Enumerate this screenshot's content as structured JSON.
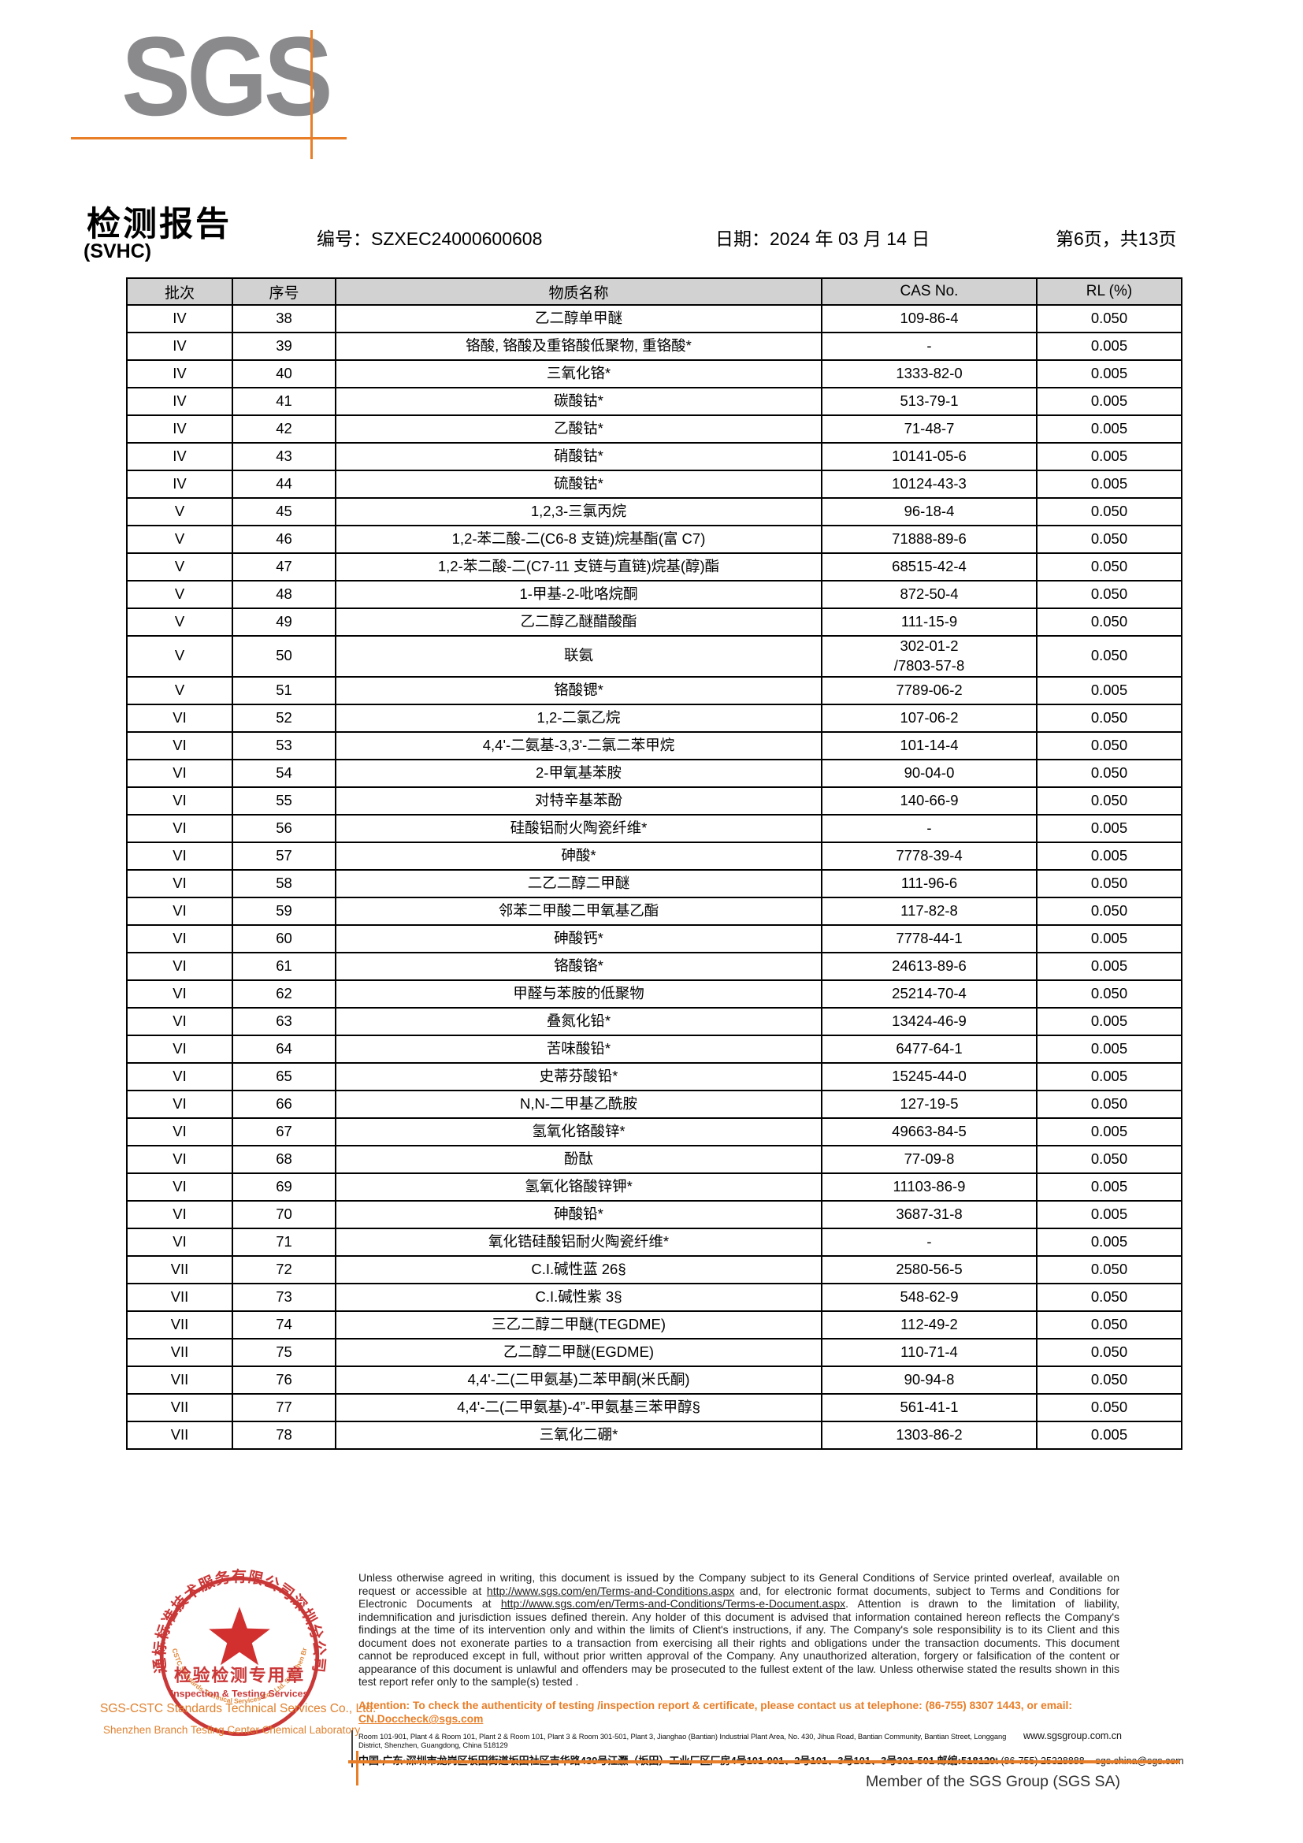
{
  "logo": {
    "text": "SGS"
  },
  "header": {
    "title": "检测报告",
    "subtitle": "(SVHC)",
    "report_no": "编号：SZXEC24000600608",
    "date": "日期：2024 年 03 月 14 日",
    "page_info": "第6页，共13页"
  },
  "table": {
    "headers": [
      "批次",
      "序号",
      "物质名称",
      "CAS No.",
      "RL (%)"
    ],
    "rows": [
      [
        "IV",
        "38",
        "乙二醇单甲醚",
        "109-86-4",
        "0.050"
      ],
      [
        "IV",
        "39",
        "铬酸, 铬酸及重铬酸低聚物, 重铬酸*",
        "-",
        "0.005"
      ],
      [
        "IV",
        "40",
        "三氧化铬*",
        "1333-82-0",
        "0.005"
      ],
      [
        "IV",
        "41",
        "碳酸钴*",
        "513-79-1",
        "0.005"
      ],
      [
        "IV",
        "42",
        "乙酸钴*",
        "71-48-7",
        "0.005"
      ],
      [
        "IV",
        "43",
        "硝酸钴*",
        "10141-05-6",
        "0.005"
      ],
      [
        "IV",
        "44",
        "硫酸钴*",
        "10124-43-3",
        "0.005"
      ],
      [
        "V",
        "45",
        "1,2,3-三氯丙烷",
        "96-18-4",
        "0.050"
      ],
      [
        "V",
        "46",
        "1,2-苯二酸-二(C6-8 支链)烷基酯(富 C7)",
        "71888-89-6",
        "0.050"
      ],
      [
        "V",
        "47",
        "1,2-苯二酸-二(C7-11 支链与直链)烷基(醇)酯",
        "68515-42-4",
        "0.050"
      ],
      [
        "V",
        "48",
        "1-甲基-2-吡咯烷酮",
        "872-50-4",
        "0.050"
      ],
      [
        "V",
        "49",
        "乙二醇乙醚醋酸酯",
        "111-15-9",
        "0.050"
      ],
      [
        "V",
        "50",
        "联氨",
        "302-01-2\n/7803-57-8",
        "0.050"
      ],
      [
        "V",
        "51",
        "铬酸锶*",
        "7789-06-2",
        "0.005"
      ],
      [
        "VI",
        "52",
        "1,2-二氯乙烷",
        "107-06-2",
        "0.050"
      ],
      [
        "VI",
        "53",
        "4,4'-二氨基-3,3'-二氯二苯甲烷",
        "101-14-4",
        "0.050"
      ],
      [
        "VI",
        "54",
        "2-甲氧基苯胺",
        "90-04-0",
        "0.050"
      ],
      [
        "VI",
        "55",
        "对特辛基苯酚",
        "140-66-9",
        "0.050"
      ],
      [
        "VI",
        "56",
        "硅酸铝耐火陶瓷纤维*",
        "-",
        "0.005"
      ],
      [
        "VI",
        "57",
        "砷酸*",
        "7778-39-4",
        "0.005"
      ],
      [
        "VI",
        "58",
        "二乙二醇二甲醚",
        "111-96-6",
        "0.050"
      ],
      [
        "VI",
        "59",
        "邻苯二甲酸二甲氧基乙酯",
        "117-82-8",
        "0.050"
      ],
      [
        "VI",
        "60",
        "砷酸钙*",
        "7778-44-1",
        "0.005"
      ],
      [
        "VI",
        "61",
        "铬酸铬*",
        "24613-89-6",
        "0.005"
      ],
      [
        "VI",
        "62",
        "甲醛与苯胺的低聚物",
        "25214-70-4",
        "0.050"
      ],
      [
        "VI",
        "63",
        "叠氮化铅*",
        "13424-46-9",
        "0.005"
      ],
      [
        "VI",
        "64",
        "苦味酸铅*",
        "6477-64-1",
        "0.005"
      ],
      [
        "VI",
        "65",
        "史蒂芬酸铅*",
        "15245-44-0",
        "0.005"
      ],
      [
        "VI",
        "66",
        "N,N-二甲基乙酰胺",
        "127-19-5",
        "0.050"
      ],
      [
        "VI",
        "67",
        "氢氧化铬酸锌*",
        "49663-84-5",
        "0.005"
      ],
      [
        "VI",
        "68",
        "酚酞",
        "77-09-8",
        "0.050"
      ],
      [
        "VI",
        "69",
        "氢氧化铬酸锌钾*",
        "11103-86-9",
        "0.005"
      ],
      [
        "VI",
        "70",
        "砷酸铅*",
        "3687-31-8",
        "0.005"
      ],
      [
        "VI",
        "71",
        "氧化锆硅酸铝耐火陶瓷纤维*",
        "-",
        "0.005"
      ],
      [
        "VII",
        "72",
        "C.I.碱性蓝 26§",
        "2580-56-5",
        "0.050"
      ],
      [
        "VII",
        "73",
        "C.I.碱性紫 3§",
        "548-62-9",
        "0.050"
      ],
      [
        "VII",
        "74",
        "三乙二醇二甲醚(TEGDME)",
        "112-49-2",
        "0.050"
      ],
      [
        "VII",
        "75",
        "乙二醇二甲醚(EGDME)",
        "110-71-4",
        "0.050"
      ],
      [
        "VII",
        "76",
        "4,4'-二(二甲氨基)二苯甲酮(米氏酮)",
        "90-94-8",
        "0.050"
      ],
      [
        "VII",
        "77",
        "4,4'-二(二甲氨基)-4”-甲氨基三苯甲醇§",
        "561-41-1",
        "0.050"
      ],
      [
        "VII",
        "78",
        "三氧化二硼*",
        "1303-86-2",
        "0.005"
      ]
    ]
  },
  "stamp": {
    "ring_text": "通标标准技术服务有限公司深圳分公司",
    "seal_line1": "检验检测专用章",
    "seal_line2": "Inspection & Testing Services",
    "inner_arc_text": "SGS-CSTC Standards Technical Services Co., Ltd. Shenzhen Branch"
  },
  "footer": {
    "company_line1": "SGS-CSTC Standards Technical Services Co., Ltd.",
    "company_line2": "Shenzhen Branch Testing Center Chemical Laboratory",
    "legal": {
      "part1": "Unless otherwise agreed in writing, this document is issued by the Company subject to its General Conditions of Service printed overleaf, available on request or accessible at ",
      "url1": "http://www.sgs.com/en/Terms-and-Conditions.aspx",
      "part2": " and, for electronic format documents, subject to Terms and Conditions for Electronic Documents at ",
      "url2": "http://www.sgs.com/en/Terms-and-Conditions/Terms-e-Document.aspx",
      "part3": ". Attention is drawn to the limitation of liability, indemnification and jurisdiction issues defined therein. Any holder of this document is advised that information contained hereon reflects the Company's findings at the time of its intervention only and within the limits of Client's instructions, if any. The Company's sole responsibility is to its Client and this document does not exonerate parties to a transaction from exercising all their rights and obligations under the transaction documents. This document cannot be reproduced except in full, without prior written approval of the Company. Any unauthorized alteration, forgery or falsification of the content or appearance of this document is unlawful and offenders may be prosecuted to the fullest extent of the law. Unless otherwise stated the results shown in this test report refer only to the sample(s) tested ."
    },
    "attention": {
      "text": "Attention: To check the authenticity of testing /inspection report & certificate, please contact us at telephone: (86-755) 8307 1443, or email: ",
      "email": "CN.Doccheck@sgs.com"
    },
    "address_en": "Room 101-901, Plant 4 & Room 101, Plant 2 & Room 101, Plant 3 & Room 301-501, Plant 3, Jianghao (Bantian) Industrial Plant Area, No. 430, Jihua Road, Bantian Community, Bantian Street, Longgang District, Shenzhen, Guangdong, China 518129",
    "website": "www.sgsgroup.com.cn",
    "address_cn": "中国·广东·深圳市龙岗区坂田街道坂田社区吉华路430号江灏（坂田）工业厂区厂房4号101-901、2号101、3号101、3号301-501 邮编:518129",
    "phone": "t (86-755) 25328888",
    "email": "sgs.china@sgs.com",
    "member": "Member of the SGS Group (SGS SA)"
  },
  "colors": {
    "accent_orange": "#e87e28",
    "seal_red": "#c62828",
    "logo_gray": "#8a8a8d",
    "table_header_bg": "#d2d2d2"
  }
}
